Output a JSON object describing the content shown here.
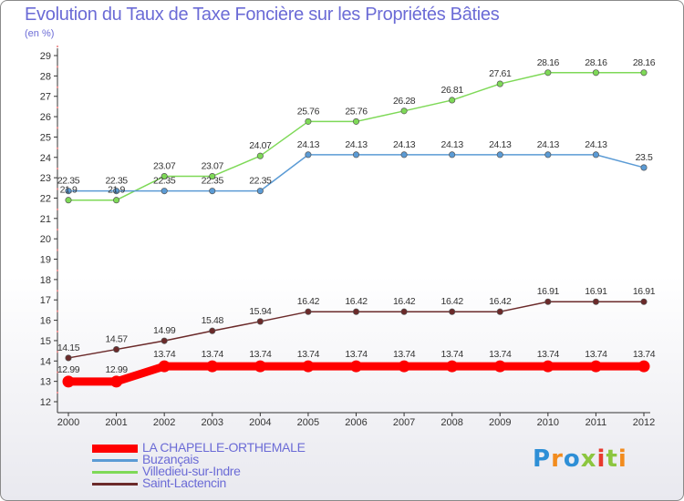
{
  "title": "Evolution du Taux de Taxe Foncière sur les Propriétés Bâties",
  "unit_label": "(en %)",
  "logo": {
    "text": "Proxiti",
    "colors": [
      "#2e8fd6",
      "#f28c1e",
      "#2e8fd6",
      "#8cc63f",
      "#e83a2e",
      "#8cc63f",
      "#f28c1e"
    ]
  },
  "chart_data": {
    "type": "line",
    "title": "Evolution du Taux de Taxe Foncière sur les Propriétés Bâties",
    "ylabel": "(en %)",
    "xlabel": "",
    "x": [
      "2000",
      "2001",
      "2002",
      "2003",
      "2004",
      "2005",
      "2006",
      "2007",
      "2008",
      "2009",
      "2010",
      "2011",
      "2012"
    ],
    "ylim": [
      12,
      29
    ],
    "yticks": [
      12,
      13,
      14,
      15,
      16,
      17,
      18,
      19,
      20,
      21,
      22,
      23,
      24,
      25,
      26,
      27,
      28,
      29
    ],
    "grid": false,
    "legend_position": "bottom-left",
    "series": [
      {
        "name": "LA CHAPELLE-ORTHEMALE",
        "color": "#ff0000",
        "values": [
          12.99,
          12.99,
          13.74,
          13.74,
          13.74,
          13.74,
          13.74,
          13.74,
          13.74,
          13.74,
          13.74,
          13.74,
          13.74
        ],
        "labels": [
          "12.99",
          "12.99",
          "13.74",
          "13.74",
          "13.74",
          "13.74",
          "13.74",
          "13.74",
          "13.74",
          "13.74",
          "13.74",
          "13.74",
          "13.74"
        ]
      },
      {
        "name": "Buzançais",
        "color": "#5b9bd5",
        "values": [
          22.35,
          22.35,
          22.35,
          22.35,
          22.35,
          24.13,
          24.13,
          24.13,
          24.13,
          24.13,
          24.13,
          24.13,
          23.5
        ],
        "labels": [
          "22.35",
          "22.35",
          "22.35",
          "22.35",
          "22.35",
          "24.13",
          "24.13",
          "24.13",
          "24.13",
          "24.13",
          "24.13",
          "24.13",
          "23.5"
        ]
      },
      {
        "name": "Villedieu-sur-Indre",
        "color": "#7ed957",
        "values": [
          21.9,
          21.9,
          23.07,
          23.07,
          24.07,
          25.76,
          25.76,
          26.28,
          26.81,
          27.61,
          28.16,
          28.16,
          28.16
        ],
        "labels": [
          "21.9",
          "21.9",
          "23.07",
          "23.07",
          "24.07",
          "25.76",
          "25.76",
          "26.28",
          "26.81",
          "27.61",
          "28.16",
          "28.16",
          "28.16"
        ]
      },
      {
        "name": "Saint-Lactencin",
        "color": "#6b2a2a",
        "values": [
          14.15,
          14.57,
          14.99,
          15.48,
          15.94,
          16.42,
          16.42,
          16.42,
          16.42,
          16.42,
          16.91,
          16.91,
          16.91
        ],
        "labels": [
          "14.15",
          "14.57",
          "14.99",
          "15.48",
          "15.94",
          "16.42",
          "16.42",
          "16.42",
          "16.42",
          "16.42",
          "16.91",
          "16.91",
          "16.91"
        ]
      }
    ]
  }
}
